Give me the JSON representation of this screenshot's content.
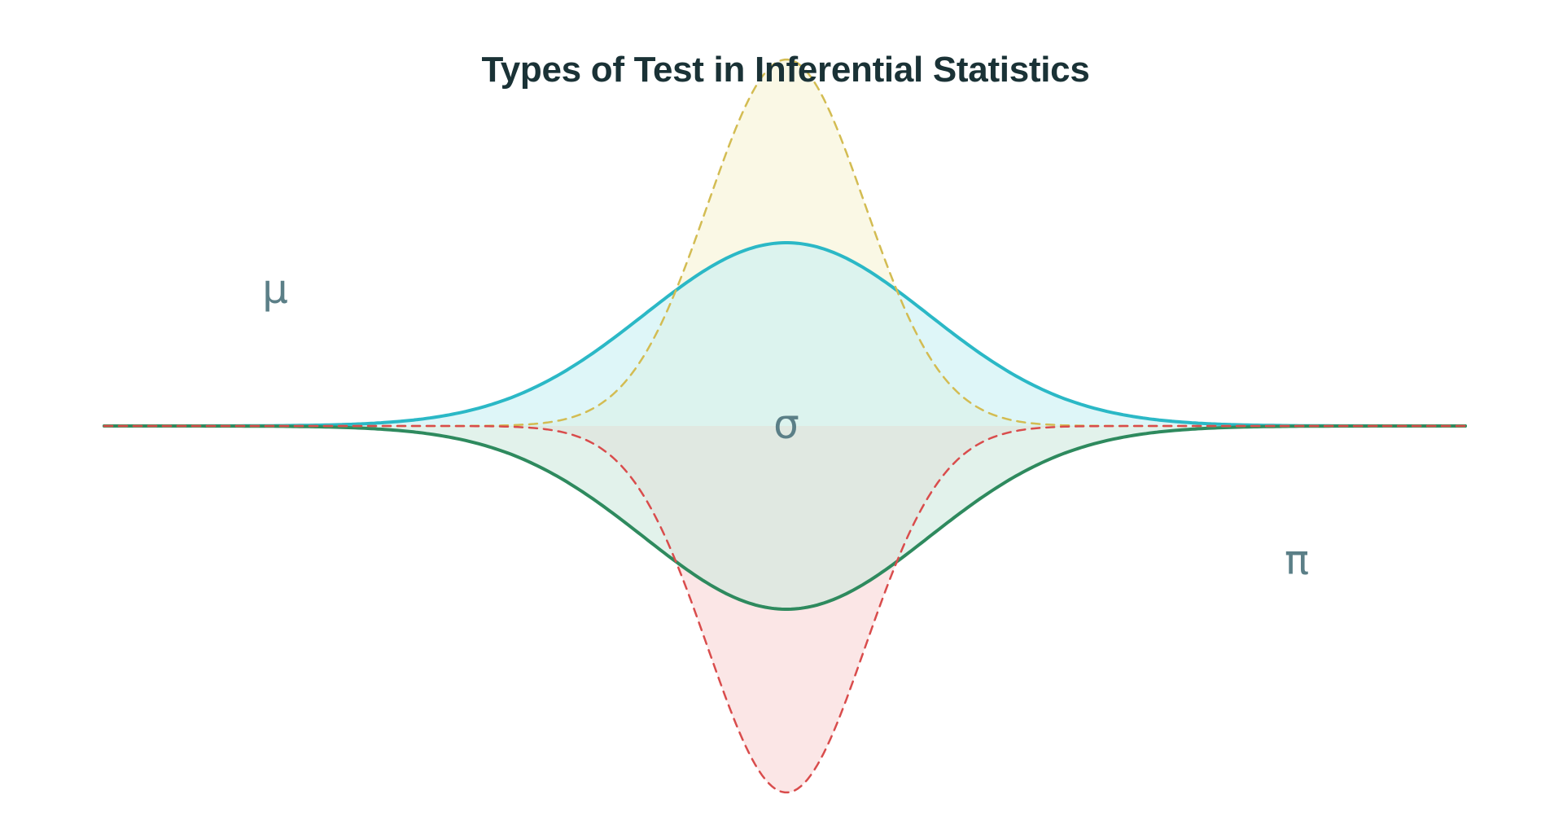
{
  "diagram": {
    "title": "Types of Test in Inferential Statistics",
    "symbols": {
      "mu": "μ",
      "sigma": "σ",
      "pi": "π"
    },
    "colors": {
      "title": "#1a3236",
      "symbol": "#5b7f87",
      "teal_stroke": "#2bb8c6",
      "teal_fill": "#c8f0f3",
      "yellow_stroke": "#d3bc52",
      "yellow_fill": "#f8f5dc",
      "green_stroke": "#2e8a5e",
      "green_fill": "#cfe9de",
      "red_stroke": "#d94c4c",
      "red_fill": "#f9dede"
    },
    "curves": [
      {
        "id": "yellow-upper-curve",
        "side": "upper",
        "style": "dashed",
        "amplitude": 1.0,
        "spread": 0.55,
        "stroke": "yellow_stroke",
        "fill": "yellow_fill"
      },
      {
        "id": "teal-upper-curve",
        "side": "upper",
        "style": "solid",
        "amplitude": 0.5,
        "spread": 1.0,
        "stroke": "teal_stroke",
        "fill": "teal_fill"
      },
      {
        "id": "red-lower-curve",
        "side": "lower",
        "style": "dashed",
        "amplitude": 1.0,
        "spread": 0.55,
        "stroke": "red_stroke",
        "fill": "red_fill"
      },
      {
        "id": "green-lower-curve",
        "side": "lower",
        "style": "solid",
        "amplitude": 0.5,
        "spread": 1.0,
        "stroke": "green_stroke",
        "fill": "green_fill"
      }
    ]
  }
}
